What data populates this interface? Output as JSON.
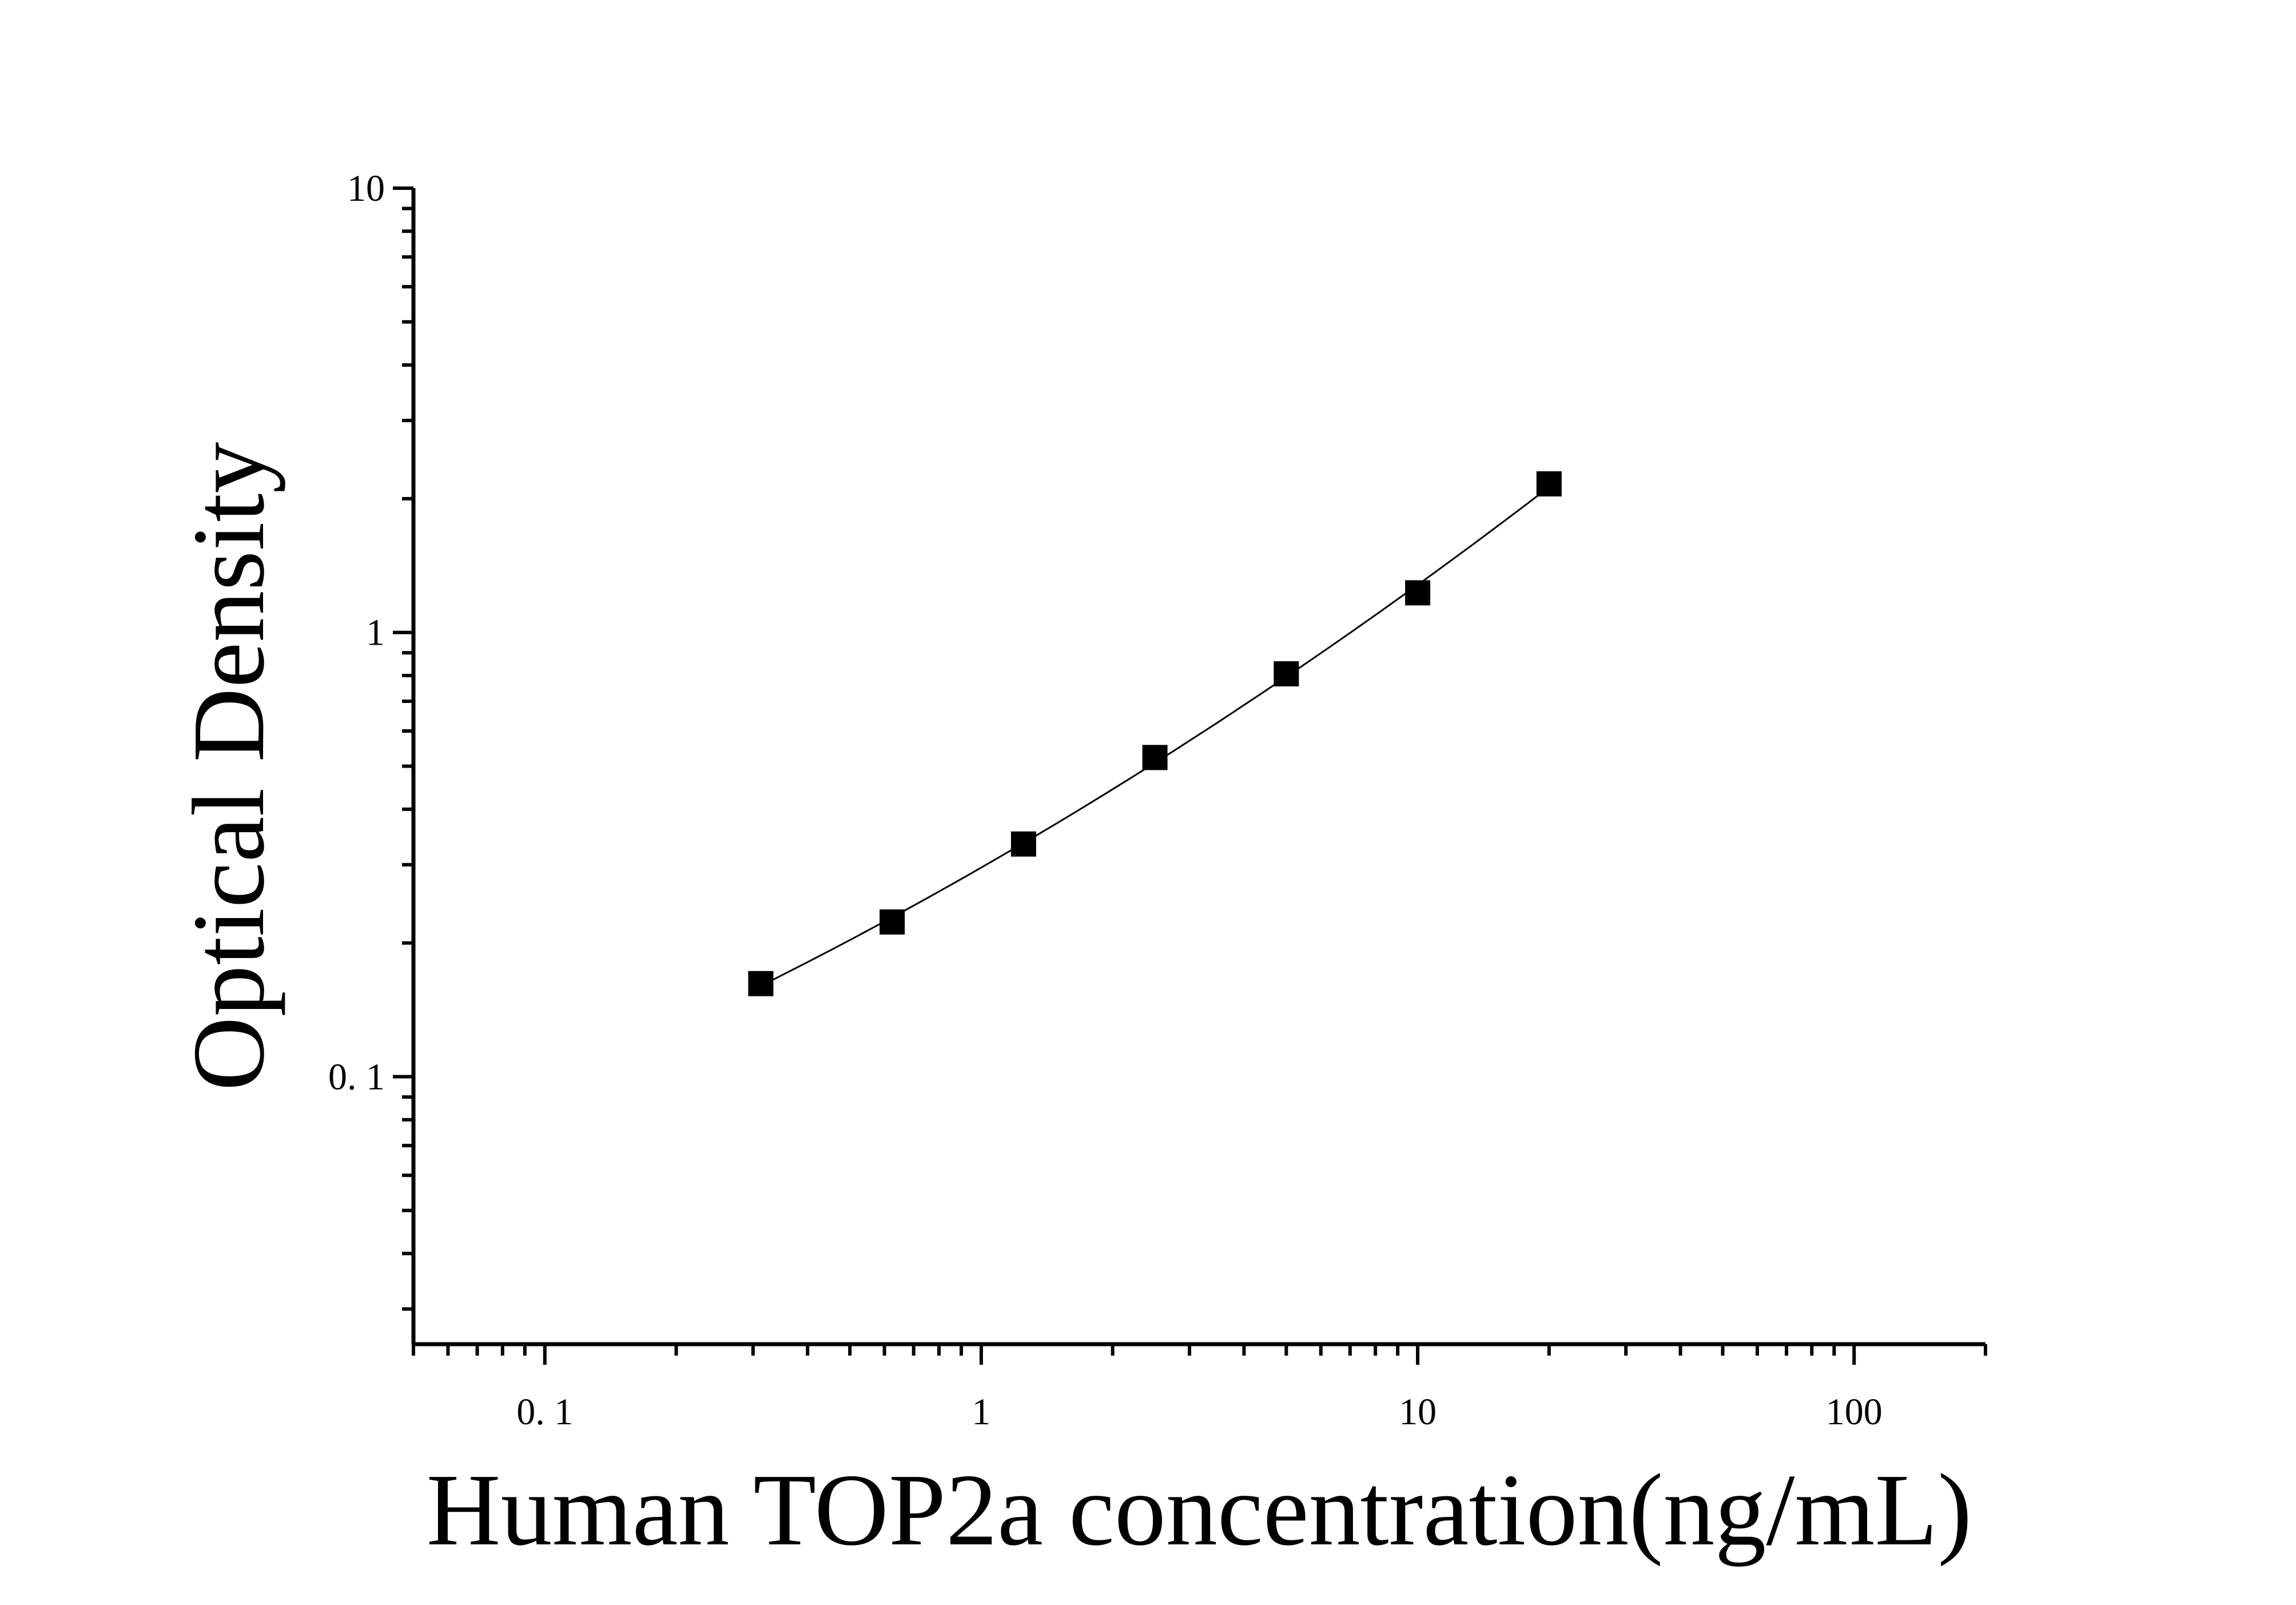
{
  "chart_data": {
    "type": "scatter",
    "title": "",
    "xlabel": "Human TOP2a concentration(ng/mL)",
    "ylabel": "Optical Density",
    "x_scale": "log",
    "y_scale": "log",
    "xlim": [
      0.05,
      200
    ],
    "ylim": [
      0.025,
      10
    ],
    "grid": false,
    "legend": "none",
    "x_ticks": [
      {
        "value": 0.1,
        "label": "0. 1"
      },
      {
        "value": 1,
        "label": "1"
      },
      {
        "value": 10,
        "label": "10"
      },
      {
        "value": 100,
        "label": "100"
      }
    ],
    "y_ticks": [
      {
        "value": 0.1,
        "label": "0. 1"
      },
      {
        "value": 1,
        "label": "1"
      },
      {
        "value": 10,
        "label": "10"
      }
    ],
    "series": [
      {
        "marker": "square",
        "color": "#000000",
        "fit_line": true,
        "x": [
          0.3125,
          0.625,
          1.25,
          2.5,
          5,
          10,
          20
        ],
        "y": [
          0.162,
          0.223,
          0.334,
          0.523,
          0.807,
          1.228,
          2.16
        ]
      }
    ]
  }
}
